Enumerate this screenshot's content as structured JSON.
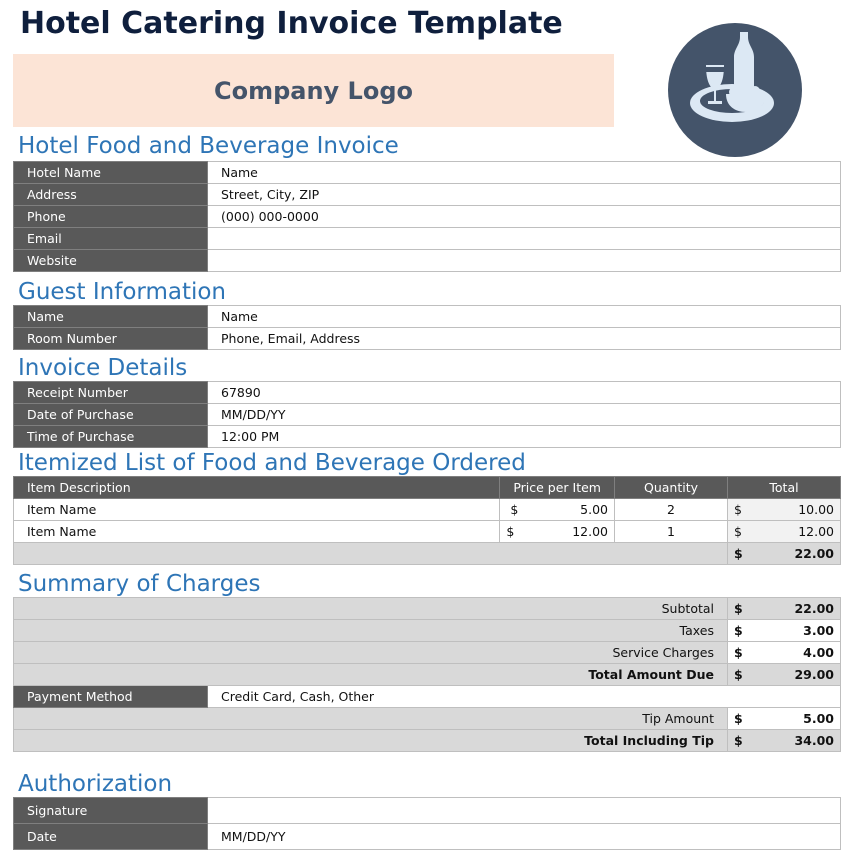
{
  "title": "Hotel Catering Invoice Template",
  "logo_text": "Company Logo",
  "logo_icon": "tray-wine-bottle-icon",
  "colors": {
    "header_bg": "#595959",
    "heading": "#2e75b6",
    "logo_bg": "#fce4d6",
    "circle": "#44546a"
  },
  "hotel": {
    "heading": "Hotel Food and Beverage Invoice",
    "rows": [
      {
        "label": "Hotel Name",
        "value": "Name"
      },
      {
        "label": "Address",
        "value": "Street, City, ZIP"
      },
      {
        "label": "Phone",
        "value": "(000) 000-0000"
      },
      {
        "label": "Email",
        "value": ""
      },
      {
        "label": "Website",
        "value": ""
      }
    ]
  },
  "guest": {
    "heading": "Guest Information",
    "rows": [
      {
        "label": "Name",
        "value": "Name"
      },
      {
        "label": "Room Number",
        "value": "Phone, Email, Address"
      }
    ]
  },
  "invoice": {
    "heading": "Invoice Details",
    "rows": [
      {
        "label": "Receipt Number",
        "value": "67890"
      },
      {
        "label": "Date of Purchase",
        "value": "MM/DD/YY"
      },
      {
        "label": "Time of Purchase",
        "value": "12:00 PM"
      }
    ]
  },
  "items": {
    "heading": "Itemized List of Food and Beverage Ordered",
    "columns": [
      "Item Description",
      "Price per Item",
      "Quantity",
      "Total"
    ],
    "rows": [
      {
        "desc": "Item Name",
        "price": "5.00",
        "qty": "2",
        "total": "10.00"
      },
      {
        "desc": "Item Name",
        "price": "12.00",
        "qty": "1",
        "total": "12.00"
      }
    ],
    "grand_total": "22.00",
    "currency": "$"
  },
  "summary": {
    "heading": "Summary of Charges",
    "currency": "$",
    "subtotal_label": "Subtotal",
    "subtotal": "22.00",
    "taxes_label": "Taxes",
    "taxes": "3.00",
    "service_label": "Service Charges",
    "service": "4.00",
    "total_due_label": "Total Amount Due",
    "total_due": "29.00",
    "payment_label": "Payment Method",
    "payment": "Credit Card, Cash, Other",
    "tip_label": "Tip Amount",
    "tip": "5.00",
    "total_tip_label": "Total Including Tip",
    "total_tip": "34.00"
  },
  "auth": {
    "heading": "Authorization",
    "rows": [
      {
        "label": "Signature",
        "value": ""
      },
      {
        "label": "Date",
        "value": "MM/DD/YY"
      }
    ]
  }
}
